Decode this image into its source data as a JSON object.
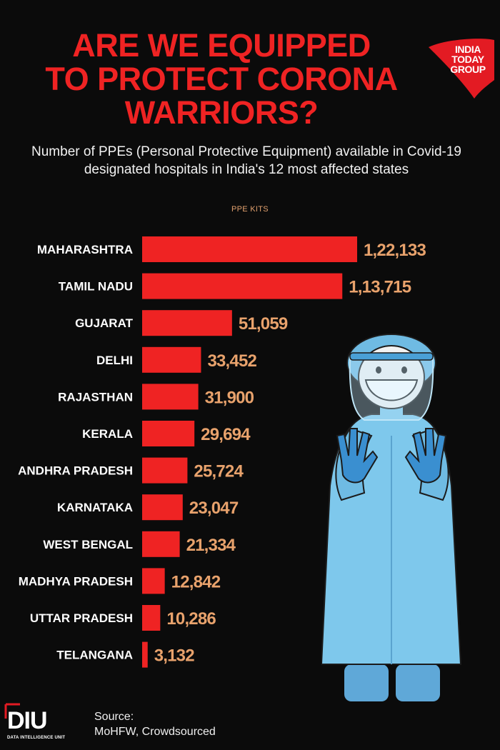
{
  "header": {
    "title_lines": [
      "ARE WE EQUIPPED",
      "TO PROTECT CORONA",
      "WARRIORS?"
    ],
    "subtitle": "Number of PPEs (Personal Protective Equipment) available in Covid-19 designated hospitals in India's 12 most affected states",
    "unit_label": "PPE KITS"
  },
  "logo": {
    "lines": [
      "INDIA",
      "TODAY",
      "GROUP"
    ]
  },
  "footer": {
    "brand": "DIU",
    "brand_sub": "DATA INTELLIGENCE UNIT",
    "source_label": "Source:",
    "source_text": "MoHFW, Crowdsourced"
  },
  "colors": {
    "background": "#0b0b0b",
    "title": "#ef2323",
    "bar": "#ef2323",
    "value_label": "#e8a26c",
    "gown": "#7ec8ec"
  },
  "chart_data": {
    "type": "bar",
    "orientation": "horizontal",
    "title": "ARE WE EQUIPPED TO PROTECT CORONA WARRIORS?",
    "categories": [
      "MAHARASHTRA",
      "TAMIL NADU",
      "GUJARAT",
      "DELHI",
      "RAJASTHAN",
      "KERALA",
      "ANDHRA PRADESH",
      "KARNATAKA",
      "WEST BENGAL",
      "MADHYA PRADESH",
      "UTTAR PRADESH",
      "TELANGANA"
    ],
    "values": [
      122133,
      113715,
      51059,
      33452,
      31900,
      29694,
      25724,
      23047,
      21334,
      12842,
      10286,
      3132
    ],
    "value_labels": [
      "1,22,133",
      "1,13,715",
      "51,059",
      "33,452",
      "31,900",
      "29,694",
      "25,724",
      "23,047",
      "21,334",
      "12,842",
      "10,286",
      "3,132"
    ],
    "xlim": [
      0,
      122133
    ],
    "grid": false,
    "legend": "none"
  }
}
